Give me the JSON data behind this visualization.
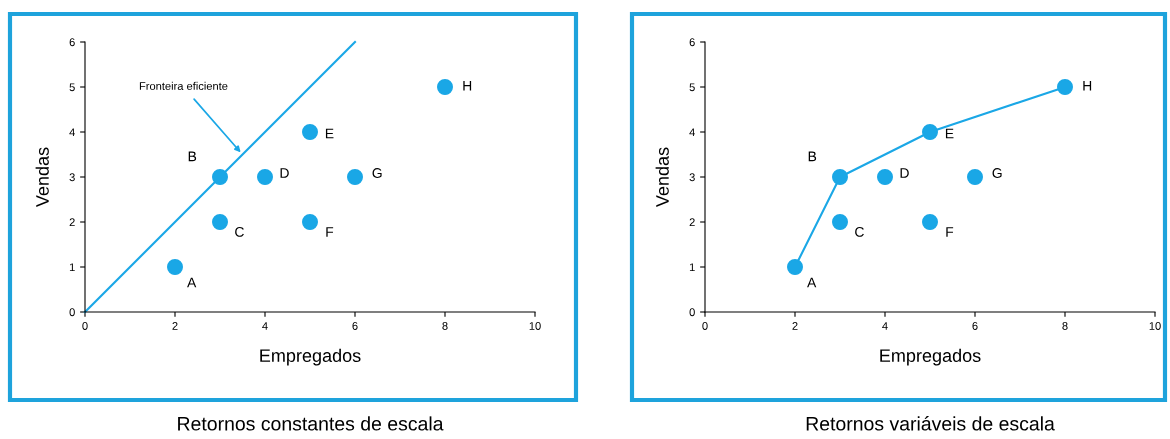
{
  "chart_data": [
    {
      "type": "scatter",
      "title": "Retornos constantes de escala",
      "xlabel": "Empregados",
      "ylabel": "Vendas",
      "xlim": [
        0,
        10
      ],
      "ylim": [
        0,
        6
      ],
      "xticks": [
        0,
        2,
        4,
        6,
        8,
        10
      ],
      "yticks": [
        0,
        1,
        2,
        3,
        4,
        5,
        6
      ],
      "grid": false,
      "marker": "circle",
      "series": [
        {
          "color": "#1aa7e6",
          "x": [
            2,
            3,
            3,
            4,
            5,
            5,
            6,
            8
          ],
          "values": [
            1,
            3,
            2,
            3,
            4,
            2,
            3,
            5
          ],
          "value_labels": [
            "A",
            "B",
            "C",
            "D",
            "E",
            "F",
            "G",
            "H"
          ]
        },
        {
          "type": "line",
          "color": "#1aa7e6",
          "marker": "none",
          "x": [
            0,
            6
          ],
          "values": [
            0,
            6
          ]
        }
      ],
      "annotations": [
        {
          "text": "Fronteira eficiente",
          "x": 3.5,
          "y": 3.5
        }
      ]
    },
    {
      "type": "scatter",
      "title": "Retornos variáveis de escala",
      "xlabel": "Empregados",
      "ylabel": "Vendas",
      "xlim": [
        0,
        10
      ],
      "ylim": [
        0,
        6
      ],
      "xticks": [
        0,
        2,
        4,
        6,
        8,
        10
      ],
      "yticks": [
        0,
        1,
        2,
        3,
        4,
        5,
        6
      ],
      "grid": false,
      "marker": "circle",
      "series": [
        {
          "type": "line",
          "color": "#1aa7e6",
          "marker": "none",
          "x": [
            2,
            3,
            5,
            8
          ],
          "values": [
            1,
            3,
            4,
            5
          ]
        },
        {
          "color": "#1aa7e6",
          "x": [
            2,
            3,
            3,
            4,
            5,
            5,
            6,
            8
          ],
          "values": [
            1,
            3,
            2,
            3,
            4,
            2,
            3,
            5
          ],
          "value_labels": [
            "A",
            "B",
            "C",
            "D",
            "E",
            "F",
            "G",
            "H"
          ]
        }
      ]
    }
  ]
}
